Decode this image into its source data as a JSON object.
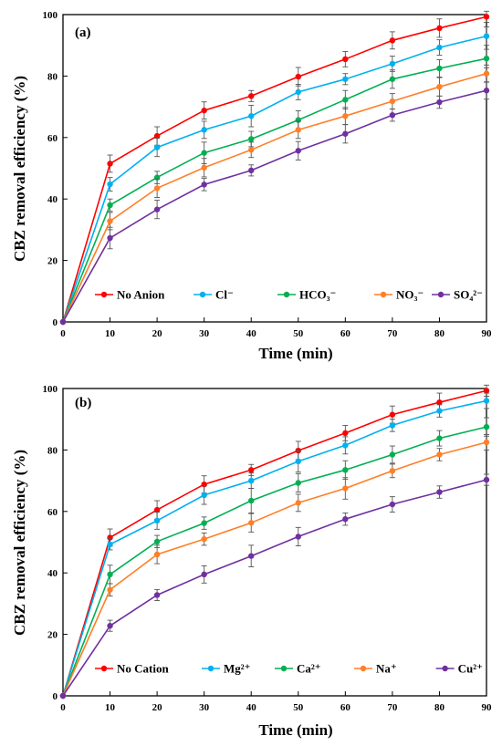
{
  "chart_data": [
    {
      "type": "line",
      "panel_label": "(a)",
      "xlabel": "Time (min)",
      "ylabel": "CBZ removal efficiency (%)",
      "xlim": [
        0,
        90
      ],
      "ylim": [
        0,
        100
      ],
      "x_ticks": [
        "0",
        "10",
        "20",
        "30",
        "40",
        "50",
        "60",
        "70",
        "80",
        "90"
      ],
      "y_ticks": [
        "0",
        "20",
        "40",
        "60",
        "80",
        "100"
      ],
      "grid": false,
      "legend_position": "bottom",
      "x": [
        0,
        10,
        20,
        30,
        40,
        50,
        60,
        70,
        80,
        90
      ],
      "series": [
        {
          "name": "No Anion",
          "color": "#ff0000",
          "values": [
            0,
            51.5,
            60.5,
            68.8,
            73.5,
            79.8,
            85.5,
            91.6,
            95.6,
            99.3
          ],
          "errors": [
            0,
            2.8,
            3.0,
            2.8,
            1.8,
            3.0,
            2.5,
            2.8,
            3.0,
            1.8
          ]
        },
        {
          "name": "Cl⁻",
          "color": "#00b0f0",
          "values": [
            0,
            44.8,
            56.8,
            62.5,
            67.0,
            74.8,
            79.0,
            84.0,
            89.3,
            93.0
          ],
          "errors": [
            0,
            2.2,
            3.0,
            2.8,
            3.5,
            2.5,
            1.8,
            2.5,
            2.5,
            3.0
          ]
        },
        {
          "name": "HCO₃⁻",
          "color": "#00b050",
          "values": [
            0,
            38.0,
            47.0,
            55.0,
            59.5,
            65.7,
            72.3,
            79.0,
            82.5,
            85.7
          ],
          "errors": [
            0,
            2.0,
            2.0,
            3.5,
            2.5,
            3.0,
            3.0,
            3.0,
            2.8,
            3.0
          ]
        },
        {
          "name": "NO₃⁻",
          "color": "#ff7f27",
          "values": [
            0,
            32.8,
            43.5,
            50.2,
            56.0,
            62.5,
            67.0,
            71.8,
            76.5,
            80.8
          ],
          "errors": [
            0,
            2.8,
            3.0,
            3.0,
            2.5,
            2.8,
            2.8,
            2.5,
            3.0,
            2.8
          ]
        },
        {
          "name": "SO₄²⁻",
          "color": "#7030a0",
          "values": [
            0,
            27.3,
            36.6,
            44.7,
            49.3,
            55.7,
            61.2,
            67.3,
            71.5,
            75.3
          ],
          "errors": [
            0,
            3.5,
            3.0,
            2.0,
            1.8,
            3.0,
            3.0,
            2.0,
            2.0,
            2.8
          ]
        }
      ]
    },
    {
      "type": "line",
      "panel_label": "(b)",
      "xlabel": "Time (min)",
      "ylabel": "CBZ removal efficiency (%)",
      "xlim": [
        0,
        90
      ],
      "ylim": [
        0,
        100
      ],
      "x_ticks": [
        "0",
        "10",
        "20",
        "30",
        "40",
        "50",
        "60",
        "70",
        "80",
        "90"
      ],
      "y_ticks": [
        "0",
        "20",
        "40",
        "60",
        "80",
        "100"
      ],
      "grid": false,
      "legend_position": "bottom",
      "x": [
        0,
        10,
        20,
        30,
        40,
        50,
        60,
        70,
        80,
        90
      ],
      "series": [
        {
          "name": "No Cation",
          "color": "#ff0000",
          "values": [
            0,
            51.5,
            60.5,
            68.8,
            73.5,
            79.8,
            85.5,
            91.5,
            95.5,
            99.3
          ],
          "errors": [
            0,
            2.8,
            3.0,
            2.8,
            1.8,
            3.0,
            2.5,
            2.8,
            3.0,
            1.8
          ]
        },
        {
          "name": "Mg²⁺",
          "color": "#00b0f0",
          "values": [
            0,
            49.3,
            57.0,
            65.3,
            70.0,
            76.3,
            81.5,
            88.0,
            92.7,
            96.0
          ],
          "errors": [
            0,
            1.8,
            2.8,
            3.0,
            2.5,
            3.5,
            2.8,
            2.0,
            2.0,
            2.5
          ]
        },
        {
          "name": "Ca²⁺",
          "color": "#00b050",
          "values": [
            0,
            39.5,
            50.2,
            56.2,
            63.5,
            69.3,
            73.5,
            78.5,
            83.8,
            87.5
          ],
          "errors": [
            0,
            3.0,
            2.0,
            2.0,
            4.0,
            3.0,
            3.0,
            2.8,
            2.5,
            3.0
          ]
        },
        {
          "name": "Na⁺",
          "color": "#ff7f27",
          "values": [
            0,
            34.5,
            46.0,
            51.0,
            56.3,
            62.8,
            67.5,
            73.2,
            78.5,
            82.5
          ],
          "errors": [
            0,
            2.0,
            3.0,
            2.0,
            3.0,
            2.8,
            3.5,
            2.2,
            2.0,
            2.5
          ]
        },
        {
          "name": "Cu²⁺",
          "color": "#7030a0",
          "values": [
            0,
            22.8,
            32.8,
            39.5,
            45.5,
            51.8,
            57.5,
            62.3,
            66.3,
            70.3
          ],
          "errors": [
            0,
            1.8,
            1.8,
            2.8,
            3.5,
            3.0,
            2.0,
            2.5,
            2.0,
            1.8
          ]
        }
      ]
    }
  ]
}
